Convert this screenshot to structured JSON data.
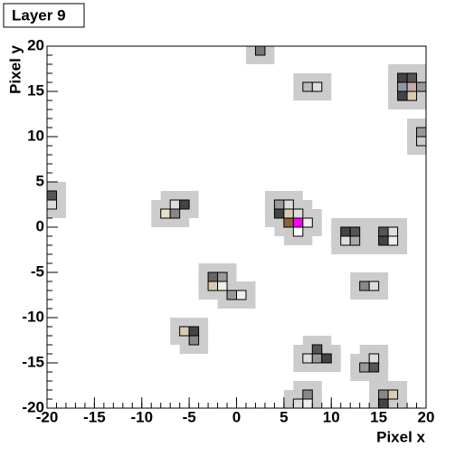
{
  "chart_data": {
    "type": "pixelmap",
    "title": "Layer 9",
    "x_label": "Pixel x",
    "y_label": "Pixel y",
    "xlim": [
      -20,
      20
    ],
    "ylim": [
      -20,
      20
    ],
    "xticks": [
      -20,
      -15,
      -10,
      -5,
      0,
      5,
      10,
      15,
      20
    ],
    "yticks": [
      -20,
      -15,
      -10,
      -5,
      0,
      5,
      10,
      15,
      20
    ],
    "halo_color": "#cccccc",
    "cells": {
      "x": [
        2,
        7,
        8,
        17,
        18,
        17,
        18,
        19,
        17,
        18,
        19,
        19,
        -20,
        -20,
        -7,
        -6,
        -8,
        -7,
        4,
        5,
        4,
        5,
        6,
        5,
        6,
        7,
        6,
        11,
        12,
        11,
        12,
        15,
        16,
        15,
        16,
        13,
        14,
        -3,
        -2,
        -3,
        -2,
        -1,
        0,
        -6,
        -5,
        -5,
        8,
        7,
        8,
        9,
        14,
        13,
        14,
        7,
        6,
        7,
        15,
        16,
        15
      ],
      "y": [
        19,
        15,
        15,
        16,
        16,
        15,
        15,
        15,
        14,
        14,
        10,
        9,
        3,
        2,
        2,
        2,
        1,
        1,
        2,
        2,
        1,
        1,
        1,
        0,
        0,
        0,
        -1,
        -1,
        -1,
        -2,
        -2,
        -1,
        -1,
        -2,
        -2,
        -7,
        -7,
        -6,
        -6,
        -7,
        -7,
        -8,
        -8,
        -12,
        -12,
        -13,
        -14,
        -15,
        -15,
        -15,
        -15,
        -16,
        -16,
        -19,
        -20,
        -20,
        -19,
        -19,
        -20
      ],
      "colors": [
        "#777777",
        "#bbbbbb",
        "#dddddd",
        "#444444",
        "#555555",
        "#8a9aaa",
        "#c8a8a8",
        "#999999",
        "#444444",
        "#d8ccb0",
        "#999999",
        "#cccccc",
        "#555555",
        "#dddddd",
        "#dddddd",
        "#444444",
        "#e8e0c8",
        "#888888",
        "#999999",
        "#dddddd",
        "#444444",
        "#d8ccb0",
        "#dddddd",
        "#8b6040",
        "#ff00ff",
        "#eeeeee",
        "#ffffff",
        "#444444",
        "#555555",
        "#dddddd",
        "#aaaaaa",
        "#555555",
        "#dddddd",
        "#444444",
        "#eeeeee",
        "#888888",
        "#dddddd",
        "#666666",
        "#999999",
        "#d8ccb0",
        "#eeeeee",
        "#999999",
        "#eeeeee",
        "#d8ccb0",
        "#444444",
        "#888888",
        "#555555",
        "#dddddd",
        "#999999",
        "#444444",
        "#dddddd",
        "#999999",
        "#555555",
        "#888888",
        "#dddddd",
        "#eeeeee",
        "#888888",
        "#d8ccb0",
        "#444444"
      ]
    }
  }
}
